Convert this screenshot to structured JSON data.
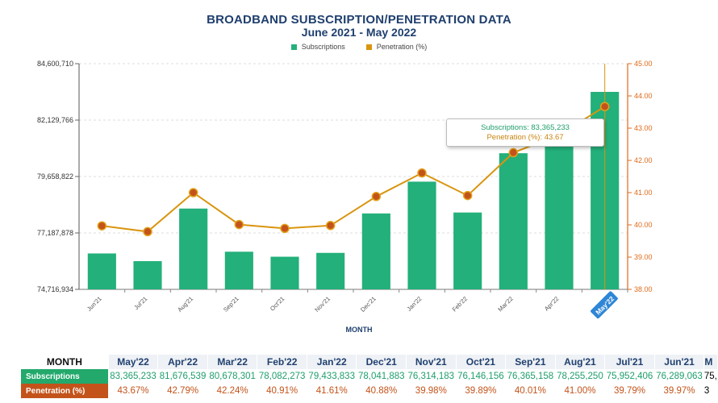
{
  "chart_data": {
    "type": "bar+line",
    "title": "BROADBAND SUBSCRIPTION/PENETRATION DATA",
    "subtitle": "June 2021 - May 2022",
    "xlabel": "MONTH",
    "categories": [
      "Jun'21",
      "Jul'21",
      "Aug'21",
      "Sep'21",
      "Oct'21",
      "Nov'21",
      "Dec'21",
      "Jan'22",
      "Feb'22",
      "Mar'22",
      "Apr'22",
      "May'22"
    ],
    "series": [
      {
        "name": "Subscriptions",
        "type": "bar",
        "axis": "left",
        "color": "#23b07a",
        "values": [
          76289063,
          75952406,
          78255250,
          76365158,
          76146156,
          76314183,
          78041883,
          79433833,
          78082273,
          80678301,
          81676539,
          83365233
        ]
      },
      {
        "name": "Penetration (%)",
        "type": "line",
        "axis": "right",
        "color": "#d9950f",
        "marker_color": "#c3531a",
        "values": [
          39.97,
          39.79,
          41.0,
          40.01,
          39.89,
          39.98,
          40.88,
          41.61,
          40.91,
          42.24,
          42.79,
          43.67
        ]
      }
    ],
    "left_axis": {
      "ticks": [
        "74,716,934",
        "77,187,878",
        "79,658,822",
        "82,129,766",
        "84,600,710"
      ],
      "range": [
        74716934,
        84600710
      ]
    },
    "right_axis": {
      "ticks": [
        "38.00",
        "39.00",
        "40.00",
        "41.00",
        "42.00",
        "43.00",
        "44.00",
        "45.00"
      ],
      "range": [
        38,
        45
      ]
    },
    "grid": true,
    "legend_position": "top-center",
    "highlight_index": 11
  },
  "tooltip": {
    "subs_label": "Subscriptions:",
    "subs_value": "83,365,233",
    "pen_label": "Penetration (%):",
    "pen_value": "43.67"
  },
  "table": {
    "header_label": "MONTH",
    "subs_label": "Subscriptions",
    "pen_label": "Penetration (%)",
    "columns": [
      {
        "month": "May'22",
        "subs": "83,365,233",
        "pen": "43.67%"
      },
      {
        "month": "Apr'22",
        "subs": "81,676,539",
        "pen": "42.79%"
      },
      {
        "month": "Mar'22",
        "subs": "80,678,301",
        "pen": "42.24%"
      },
      {
        "month": "Feb'22",
        "subs": "78,082,273",
        "pen": "40.91%"
      },
      {
        "month": "Jan'22",
        "subs": "79,433,833",
        "pen": "41.61%"
      },
      {
        "month": "Dec'21",
        "subs": "78,041,883",
        "pen": "40.88%"
      },
      {
        "month": "Nov'21",
        "subs": "76,314,183",
        "pen": "39.98%"
      },
      {
        "month": "Oct'21",
        "subs": "76,146,156",
        "pen": "39.89%"
      },
      {
        "month": "Sep'21",
        "subs": "76,365,158",
        "pen": "40.01%"
      },
      {
        "month": "Aug'21",
        "subs": "78,255,250",
        "pen": "41.00%"
      },
      {
        "month": "Jul'21",
        "subs": "75,952,406",
        "pen": "39.79%"
      },
      {
        "month": "Jun'21",
        "subs": "76,289,063",
        "pen": "39.97%"
      }
    ],
    "cut_header": "M",
    "cut_subs": "75,",
    "cut_pen": "3"
  }
}
